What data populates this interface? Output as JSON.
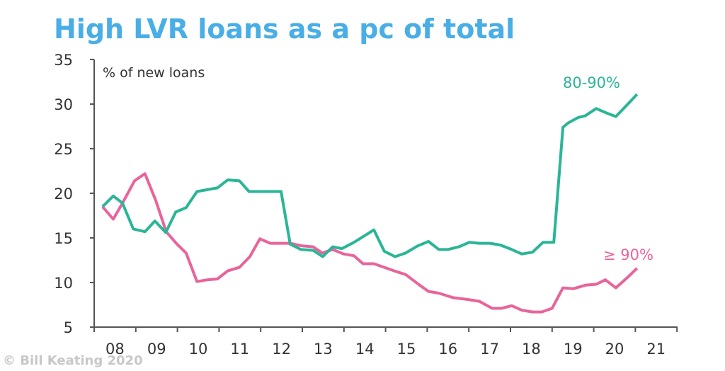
{
  "chart_data": {
    "type": "line",
    "title": "High LVR loans as a pc of total",
    "ylabel": "% of new loans",
    "xlabel": "",
    "ylim": [
      5,
      35
    ],
    "xlim": [
      2008,
      2022
    ],
    "yticks": [
      "5",
      "10",
      "15",
      "20",
      "25",
      "30",
      "35"
    ],
    "xticks": [
      "08",
      "09",
      "10",
      "11",
      "12",
      "13",
      "14",
      "15",
      "16",
      "17",
      "18",
      "19",
      "20",
      "21"
    ],
    "grid": false,
    "legend": "direct labels at line ends",
    "colors": {
      "title": "#4aaee6",
      "series_80_90": "#2bb597",
      "series_90": "#e8649a",
      "axis": "#555555"
    },
    "series": [
      {
        "name": "80-90%",
        "points": [
          [
            2008.2,
            18.5
          ],
          [
            2008.46,
            19.7
          ],
          [
            2008.68,
            18.9
          ],
          [
            2008.94,
            16.0
          ],
          [
            2009.22,
            15.7
          ],
          [
            2009.46,
            16.9
          ],
          [
            2009.72,
            15.6
          ],
          [
            2009.96,
            17.9
          ],
          [
            2010.21,
            18.4
          ],
          [
            2010.47,
            20.2
          ],
          [
            2010.96,
            20.6
          ],
          [
            2011.21,
            21.5
          ],
          [
            2011.49,
            21.4
          ],
          [
            2011.72,
            20.2
          ],
          [
            2012.49,
            20.2
          ],
          [
            2012.71,
            14.3
          ],
          [
            2012.97,
            13.7
          ],
          [
            2013.26,
            13.6
          ],
          [
            2013.49,
            12.9
          ],
          [
            2013.73,
            14.0
          ],
          [
            2013.95,
            13.8
          ],
          [
            2014.24,
            14.5
          ],
          [
            2014.72,
            15.9
          ],
          [
            2014.97,
            13.5
          ],
          [
            2015.23,
            12.9
          ],
          [
            2015.48,
            13.3
          ],
          [
            2015.77,
            14.1
          ],
          [
            2016.03,
            14.6
          ],
          [
            2016.28,
            13.7
          ],
          [
            2016.5,
            13.7
          ],
          [
            2016.76,
            14.0
          ],
          [
            2017.01,
            14.5
          ],
          [
            2017.25,
            14.4
          ],
          [
            2017.51,
            14.4
          ],
          [
            2017.76,
            14.2
          ],
          [
            2018.03,
            13.7
          ],
          [
            2018.27,
            13.2
          ],
          [
            2018.53,
            13.4
          ],
          [
            2018.78,
            14.5
          ],
          [
            2019.04,
            14.5
          ],
          [
            2019.26,
            27.4
          ],
          [
            2019.39,
            27.9
          ],
          [
            2019.63,
            28.5
          ],
          [
            2019.8,
            28.7
          ],
          [
            2020.06,
            29.5
          ],
          [
            2020.31,
            29.0
          ],
          [
            2020.53,
            28.6
          ],
          [
            2020.82,
            30.0
          ],
          [
            2021.04,
            31.1
          ]
        ]
      },
      {
        "name": "≥ 90%",
        "points": [
          [
            2008.2,
            18.5
          ],
          [
            2008.46,
            17.1
          ],
          [
            2008.68,
            18.9
          ],
          [
            2008.97,
            21.4
          ],
          [
            2009.22,
            22.2
          ],
          [
            2009.48,
            19.2
          ],
          [
            2009.73,
            15.7
          ],
          [
            2009.99,
            14.3
          ],
          [
            2010.21,
            13.3
          ],
          [
            2010.47,
            10.1
          ],
          [
            2010.72,
            10.3
          ],
          [
            2010.96,
            10.4
          ],
          [
            2011.21,
            11.3
          ],
          [
            2011.49,
            11.7
          ],
          [
            2011.74,
            12.9
          ],
          [
            2011.98,
            14.9
          ],
          [
            2012.23,
            14.4
          ],
          [
            2012.49,
            14.4
          ],
          [
            2012.71,
            14.4
          ],
          [
            2013.0,
            14.1
          ],
          [
            2013.26,
            14.0
          ],
          [
            2013.48,
            13.3
          ],
          [
            2013.73,
            13.7
          ],
          [
            2013.99,
            13.2
          ],
          [
            2014.24,
            13.0
          ],
          [
            2014.46,
            12.1
          ],
          [
            2014.72,
            12.1
          ],
          [
            2014.97,
            11.7
          ],
          [
            2015.21,
            11.3
          ],
          [
            2015.48,
            10.9
          ],
          [
            2015.82,
            9.7
          ],
          [
            2016.03,
            9.0
          ],
          [
            2016.28,
            8.8
          ],
          [
            2016.62,
            8.3
          ],
          [
            2016.96,
            8.1
          ],
          [
            2017.25,
            7.9
          ],
          [
            2017.56,
            7.1
          ],
          [
            2017.78,
            7.1
          ],
          [
            2018.03,
            7.4
          ],
          [
            2018.27,
            6.9
          ],
          [
            2018.53,
            6.7
          ],
          [
            2018.75,
            6.7
          ],
          [
            2019.0,
            7.1
          ],
          [
            2019.26,
            9.4
          ],
          [
            2019.51,
            9.3
          ],
          [
            2019.8,
            9.7
          ],
          [
            2020.06,
            9.8
          ],
          [
            2020.28,
            10.3
          ],
          [
            2020.53,
            9.4
          ],
          [
            2020.82,
            10.6
          ],
          [
            2021.04,
            11.6
          ]
        ]
      }
    ],
    "watermark": "© Bill Keating 2020"
  }
}
